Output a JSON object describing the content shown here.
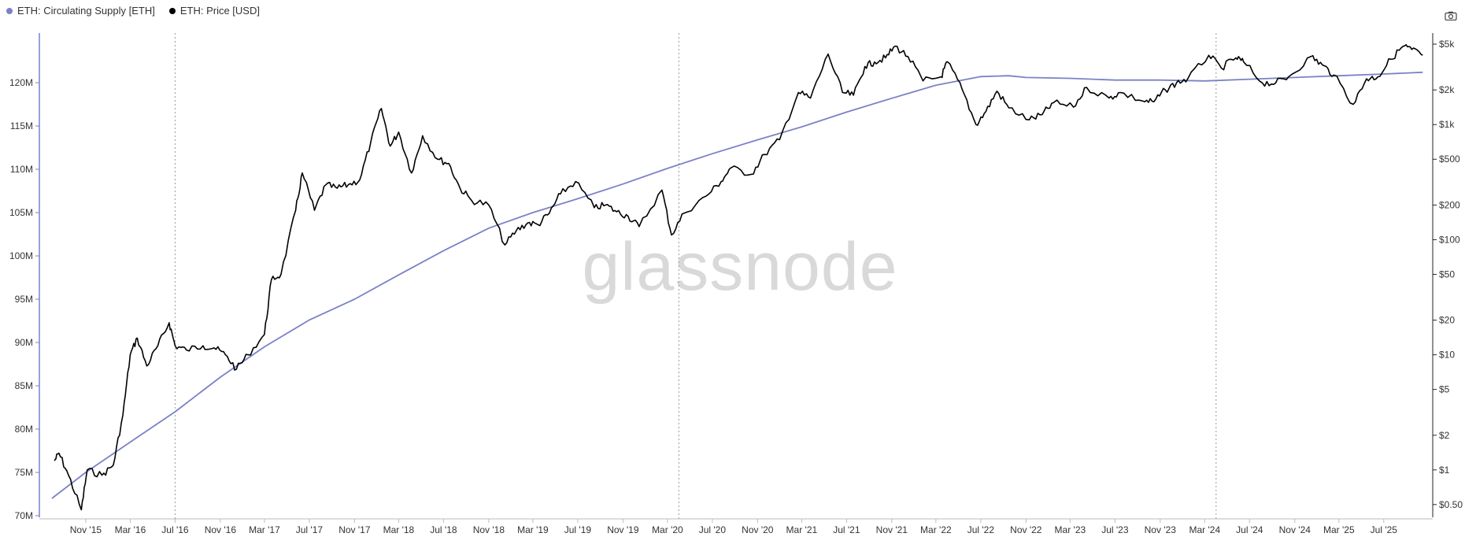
{
  "legend": [
    {
      "label": "ETH: Circulating Supply [ETH]",
      "color": "#7b82c6"
    },
    {
      "label": "ETH: Price [USD]",
      "color": "#000000"
    }
  ],
  "watermark": "glassnode",
  "toolbar": {
    "camera_icon": "camera-icon"
  },
  "chart_data": {
    "type": "line",
    "grid": false,
    "x_ticks": [
      "Nov '15",
      "Mar '16",
      "Jul '16",
      "Nov '16",
      "Mar '17",
      "Jul '17",
      "Nov '17",
      "Mar '18",
      "Jul '18",
      "Nov '18",
      "Mar '19",
      "Jul '19",
      "Nov '19",
      "Mar '20",
      "Jul '20",
      "Nov '20",
      "Mar '21",
      "Jul '21",
      "Nov '21",
      "Mar '22",
      "Jul '22",
      "Nov '22",
      "Mar '23",
      "Jul '23",
      "Nov '23",
      "Mar '24",
      "Jul '24",
      "Nov '24",
      "Mar '25",
      "Jul '25"
    ],
    "left_axis": {
      "label": "",
      "ylim": [
        70,
        125
      ],
      "ticks": [
        "70M",
        "75M",
        "80M",
        "85M",
        "90M",
        "95M",
        "100M",
        "105M",
        "110M",
        "115M",
        "120M"
      ]
    },
    "right_axis": {
      "label": "",
      "scale": "log",
      "ylim": [
        0.4,
        5500
      ],
      "ticks": [
        "$0.50",
        "$1",
        "$2",
        "$5",
        "$10",
        "$20",
        "$50",
        "$100",
        "$200",
        "$500",
        "$1k",
        "$2k",
        "$5k"
      ]
    },
    "dotted_markers": [
      "Jul '16",
      "Apr '20",
      "Apr '24"
    ],
    "series": [
      {
        "name": "ETH: Circulating Supply [ETH]",
        "axis": "left",
        "color": "#7b82c6",
        "points": [
          [
            "2015-08-01",
            72.0
          ],
          [
            "2015-11-01",
            75.0
          ],
          [
            "2016-03-01",
            78.5
          ],
          [
            "2016-07-01",
            82.0
          ],
          [
            "2016-11-01",
            86.0
          ],
          [
            "2017-03-01",
            89.5
          ],
          [
            "2017-07-01",
            92.6
          ],
          [
            "2017-11-01",
            95.0
          ],
          [
            "2018-03-01",
            97.8
          ],
          [
            "2018-07-01",
            100.6
          ],
          [
            "2018-11-01",
            103.2
          ],
          [
            "2019-03-01",
            105.0
          ],
          [
            "2019-07-01",
            106.6
          ],
          [
            "2019-11-01",
            108.3
          ],
          [
            "2020-03-01",
            110.1
          ],
          [
            "2020-07-01",
            111.8
          ],
          [
            "2020-11-01",
            113.4
          ],
          [
            "2021-03-01",
            114.9
          ],
          [
            "2021-07-01",
            116.6
          ],
          [
            "2021-11-01",
            118.2
          ],
          [
            "2022-03-01",
            119.7
          ],
          [
            "2022-07-01",
            120.7
          ],
          [
            "2022-09-15",
            120.8
          ],
          [
            "2022-11-01",
            120.6
          ],
          [
            "2023-03-01",
            120.5
          ],
          [
            "2023-07-01",
            120.3
          ],
          [
            "2023-11-01",
            120.3
          ],
          [
            "2024-03-01",
            120.2
          ],
          [
            "2024-07-01",
            120.4
          ],
          [
            "2024-11-01",
            120.6
          ],
          [
            "2025-03-01",
            120.8
          ],
          [
            "2025-07-01",
            121.0
          ],
          [
            "2025-10-15",
            121.2
          ]
        ]
      },
      {
        "name": "ETH: Price [USD]",
        "axis": "right",
        "color": "#000000",
        "points": [
          [
            "2015-08-08",
            1.2
          ],
          [
            "2015-08-20",
            1.4
          ],
          [
            "2015-09-15",
            0.9
          ],
          [
            "2015-10-20",
            0.45
          ],
          [
            "2015-11-05",
            1.0
          ],
          [
            "2015-12-15",
            0.9
          ],
          [
            "2016-01-15",
            1.1
          ],
          [
            "2016-02-10",
            3.0
          ],
          [
            "2016-03-01",
            10.0
          ],
          [
            "2016-03-20",
            14.0
          ],
          [
            "2016-04-15",
            8.0
          ],
          [
            "2016-05-15",
            12.0
          ],
          [
            "2016-06-15",
            19.0
          ],
          [
            "2016-07-01",
            12.0
          ],
          [
            "2016-08-01",
            11.0
          ],
          [
            "2016-09-15",
            12.0
          ],
          [
            "2016-10-15",
            11.5
          ],
          [
            "2016-11-15",
            10.0
          ],
          [
            "2016-12-15",
            7.5
          ],
          [
            "2017-01-15",
            10.0
          ],
          [
            "2017-03-01",
            15.0
          ],
          [
            "2017-03-20",
            45.0
          ],
          [
            "2017-04-15",
            50.0
          ],
          [
            "2017-05-25",
            180.0
          ],
          [
            "2017-06-12",
            380.0
          ],
          [
            "2017-07-15",
            180.0
          ],
          [
            "2017-08-15",
            300.0
          ],
          [
            "2017-09-15",
            280.0
          ],
          [
            "2017-10-15",
            300.0
          ],
          [
            "2017-11-15",
            330.0
          ],
          [
            "2017-12-15",
            700.0
          ],
          [
            "2018-01-13",
            1380.0
          ],
          [
            "2018-02-06",
            650.0
          ],
          [
            "2018-03-01",
            860.0
          ],
          [
            "2018-04-05",
            380.0
          ],
          [
            "2018-05-05",
            800.0
          ],
          [
            "2018-06-15",
            500.0
          ],
          [
            "2018-07-15",
            460.0
          ],
          [
            "2018-08-15",
            280.0
          ],
          [
            "2018-09-15",
            220.0
          ],
          [
            "2018-11-01",
            200.0
          ],
          [
            "2018-12-15",
            90.0
          ],
          [
            "2019-01-15",
            120.0
          ],
          [
            "2019-02-15",
            140.0
          ],
          [
            "2019-03-15",
            135.0
          ],
          [
            "2019-04-15",
            170.0
          ],
          [
            "2019-05-15",
            250.0
          ],
          [
            "2019-06-25",
            320.0
          ],
          [
            "2019-08-15",
            190.0
          ],
          [
            "2019-09-15",
            200.0
          ],
          [
            "2019-10-15",
            175.0
          ],
          [
            "2019-11-15",
            160.0
          ],
          [
            "2019-12-15",
            130.0
          ],
          [
            "2020-02-15",
            270.0
          ],
          [
            "2020-03-12",
            110.0
          ],
          [
            "2020-04-15",
            170.0
          ],
          [
            "2020-06-15",
            240.0
          ],
          [
            "2020-07-25",
            320.0
          ],
          [
            "2020-08-20",
            420.0
          ],
          [
            "2020-10-15",
            370.0
          ],
          [
            "2020-11-20",
            550.0
          ],
          [
            "2020-12-31",
            740.0
          ],
          [
            "2021-02-20",
            1900.0
          ],
          [
            "2021-03-25",
            1700.0
          ],
          [
            "2021-05-12",
            4100.0
          ],
          [
            "2021-06-20",
            1900.0
          ],
          [
            "2021-07-20",
            1800.0
          ],
          [
            "2021-08-20",
            3200.0
          ],
          [
            "2021-09-15",
            3500.0
          ],
          [
            "2021-10-15",
            3800.0
          ],
          [
            "2021-11-10",
            4800.0
          ],
          [
            "2021-12-15",
            3900.0
          ],
          [
            "2022-01-25",
            2400.0
          ],
          [
            "2022-03-15",
            2600.0
          ],
          [
            "2022-04-02",
            3500.0
          ],
          [
            "2022-05-12",
            2000.0
          ],
          [
            "2022-06-18",
            1000.0
          ],
          [
            "2022-07-15",
            1300.0
          ],
          [
            "2022-08-14",
            1950.0
          ],
          [
            "2022-09-15",
            1400.0
          ],
          [
            "2022-11-10",
            1100.0
          ],
          [
            "2022-12-15",
            1220.0
          ],
          [
            "2023-01-15",
            1550.0
          ],
          [
            "2023-03-10",
            1420.0
          ],
          [
            "2023-04-15",
            2100.0
          ],
          [
            "2023-06-15",
            1700.0
          ],
          [
            "2023-07-15",
            1900.0
          ],
          [
            "2023-09-15",
            1600.0
          ],
          [
            "2023-10-15",
            1580.0
          ],
          [
            "2023-11-15",
            2000.0
          ],
          [
            "2023-12-15",
            2300.0
          ],
          [
            "2024-01-15",
            2500.0
          ],
          [
            "2024-03-12",
            4000.0
          ],
          [
            "2024-04-15",
            3100.0
          ],
          [
            "2024-05-25",
            3800.0
          ],
          [
            "2024-06-15",
            3500.0
          ],
          [
            "2024-08-05",
            2300.0
          ],
          [
            "2024-09-10",
            2300.0
          ],
          [
            "2024-10-15",
            2600.0
          ],
          [
            "2024-12-15",
            3900.0
          ],
          [
            "2025-01-15",
            3300.0
          ],
          [
            "2025-02-15",
            2700.0
          ],
          [
            "2025-04-09",
            1500.0
          ],
          [
            "2025-05-15",
            2500.0
          ],
          [
            "2025-06-15",
            2600.0
          ],
          [
            "2025-07-20",
            3700.0
          ],
          [
            "2025-08-23",
            4800.0
          ],
          [
            "2025-09-15",
            4500.0
          ],
          [
            "2025-10-15",
            4000.0
          ]
        ]
      }
    ]
  }
}
